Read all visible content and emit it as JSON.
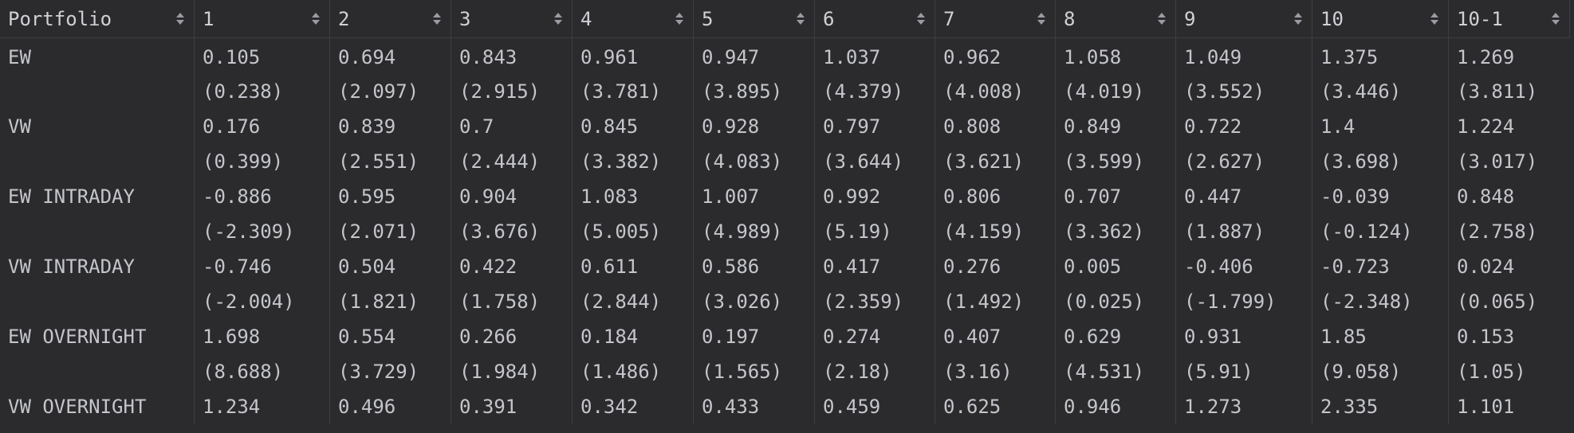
{
  "table": {
    "columns": [
      "Portfolio",
      "1",
      "2",
      "3",
      "4",
      "5",
      "6",
      "7",
      "8",
      "9",
      "10",
      "10-1"
    ],
    "rows": [
      {
        "label": "EW",
        "values": [
          "0.105",
          "0.694",
          "0.843",
          "0.961",
          "0.947",
          "1.037",
          "0.962",
          "1.058",
          "1.049",
          "1.375",
          "1.269"
        ]
      },
      {
        "label": "",
        "values": [
          "(0.238)",
          "(2.097)",
          "(2.915)",
          "(3.781)",
          "(3.895)",
          "(4.379)",
          "(4.008)",
          "(4.019)",
          "(3.552)",
          "(3.446)",
          "(3.811)"
        ]
      },
      {
        "label": "VW",
        "values": [
          "0.176",
          "0.839",
          "0.7",
          "0.845",
          "0.928",
          "0.797",
          "0.808",
          "0.849",
          "0.722",
          "1.4",
          "1.224"
        ]
      },
      {
        "label": "",
        "values": [
          "(0.399)",
          "(2.551)",
          "(2.444)",
          "(3.382)",
          "(4.083)",
          "(3.644)",
          "(3.621)",
          "(3.599)",
          "(2.627)",
          "(3.698)",
          "(3.017)"
        ]
      },
      {
        "label": "EW INTRADAY",
        "values": [
          "-0.886",
          "0.595",
          "0.904",
          "1.083",
          "1.007",
          "0.992",
          "0.806",
          "0.707",
          "0.447",
          "-0.039",
          "0.848"
        ]
      },
      {
        "label": "",
        "values": [
          "(-2.309)",
          "(2.071)",
          "(3.676)",
          "(5.005)",
          "(4.989)",
          "(5.19)",
          "(4.159)",
          "(3.362)",
          "(1.887)",
          "(-0.124)",
          "(2.758)"
        ]
      },
      {
        "label": "VW INTRADAY",
        "values": [
          "-0.746",
          "0.504",
          "0.422",
          "0.611",
          "0.586",
          "0.417",
          "0.276",
          "0.005",
          "-0.406",
          "-0.723",
          "0.024"
        ]
      },
      {
        "label": "",
        "values": [
          "(-2.004)",
          "(1.821)",
          "(1.758)",
          "(2.844)",
          "(3.026)",
          "(2.359)",
          "(1.492)",
          "(0.025)",
          "(-1.799)",
          "(-2.348)",
          "(0.065)"
        ]
      },
      {
        "label": "EW OVERNIGHT",
        "values": [
          "1.698",
          "0.554",
          "0.266",
          "0.184",
          "0.197",
          "0.274",
          "0.407",
          "0.629",
          "0.931",
          "1.85",
          "0.153"
        ]
      },
      {
        "label": "",
        "values": [
          "(8.688)",
          "(3.729)",
          "(1.984)",
          "(1.486)",
          "(1.565)",
          "(2.18)",
          "(3.16)",
          "(4.531)",
          "(5.91)",
          "(9.058)",
          "(1.05)"
        ]
      },
      {
        "label": "VW OVERNIGHT",
        "values": [
          "1.234",
          "0.496",
          "0.391",
          "0.342",
          "0.433",
          "0.459",
          "0.625",
          "0.946",
          "1.273",
          "2.335",
          "1.101"
        ]
      }
    ]
  },
  "icons": {
    "sort": "sort-arrows-icon"
  }
}
